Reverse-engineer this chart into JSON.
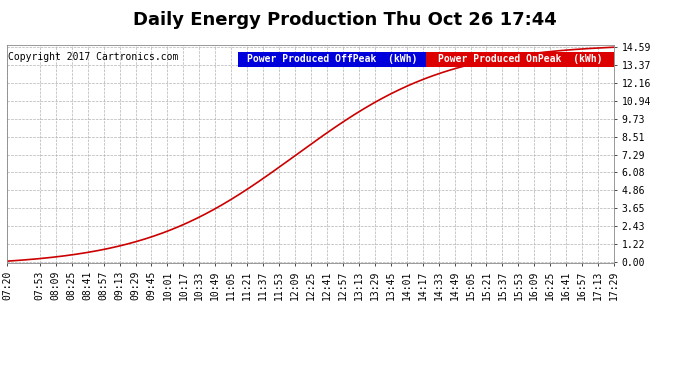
{
  "title": "Daily Energy Production Thu Oct 26 17:44",
  "copyright_text": "Copyright 2017 Cartronics.com",
  "legend_offpeak_label": "Power Produced OffPeak  (kWh)",
  "legend_onpeak_label": "Power Produced OnPeak  (kWh)",
  "legend_offpeak_color": "#0000dd",
  "legend_onpeak_color": "#dd0000",
  "line_color": "#cc0000",
  "background_color": "#ffffff",
  "plot_bg_color": "#ffffff",
  "grid_color": "#aaaaaa",
  "yticks": [
    0.0,
    1.22,
    2.43,
    3.65,
    4.86,
    6.08,
    7.29,
    8.51,
    9.73,
    10.94,
    12.16,
    13.37,
    14.59
  ],
  "ymin": 0.0,
  "ymax": 14.59,
  "xtick_labels": [
    "07:20",
    "07:53",
    "08:09",
    "08:25",
    "08:41",
    "08:57",
    "09:13",
    "09:29",
    "09:45",
    "10:01",
    "10:17",
    "10:33",
    "10:49",
    "11:05",
    "11:21",
    "11:37",
    "11:53",
    "12:09",
    "12:25",
    "12:41",
    "12:57",
    "13:13",
    "13:29",
    "13:45",
    "14:01",
    "14:17",
    "14:33",
    "14:49",
    "15:05",
    "15:21",
    "15:37",
    "15:53",
    "16:09",
    "16:25",
    "16:41",
    "16:57",
    "17:13",
    "17:29"
  ],
  "title_fontsize": 13,
  "tick_fontsize": 7,
  "copyright_fontsize": 7,
  "legend_fontsize": 7
}
